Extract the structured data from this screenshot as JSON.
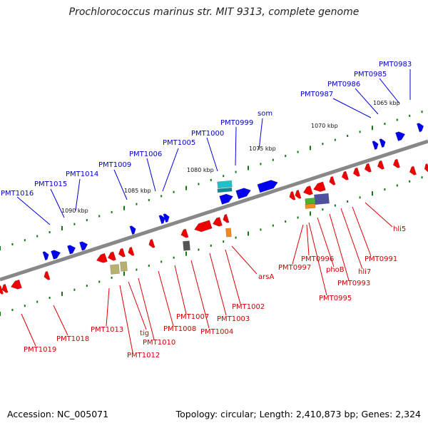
{
  "title": "Prochlorococcus marinus str. MIT 9313, complete genome",
  "footer": {
    "accession": "Accession: NC_005071",
    "summary": "Topology: circular; Length: 2,410,873 bp; Genes: 2,324"
  },
  "colors": {
    "forward_strand": "#0000ee",
    "reverse_strand": "#ee0000",
    "backbone": "#888888",
    "tick_marks": "#117711"
  },
  "scale_labels": [
    "1065 kbp",
    "1070 kbp",
    "1075 kbp",
    "1080 kbp",
    "1085 kbp",
    "1090 kbp"
  ],
  "forward_labels": [
    "PMT0983",
    "PMT0985",
    "PMT0986",
    "PMT0987",
    "som",
    "PMT0999",
    "PMT1000",
    "PMT1005",
    "PMT1006",
    "PMT1009",
    "PMT1014",
    "PMT1015",
    "PMT1016"
  ],
  "reverse_labels": [
    "hli5",
    "PMT0991",
    "hli7",
    "PMT0993",
    "phoB",
    "PMT0995",
    "PMT0996",
    "PMT0997",
    "arsA",
    "PMT1002",
    "PMT1003",
    "PMT1004",
    "PMT1007",
    "PMT1008",
    "PMT1010",
    "tig",
    "PMT1012",
    "PMT1013",
    "PMT1018",
    "PMT1019"
  ]
}
